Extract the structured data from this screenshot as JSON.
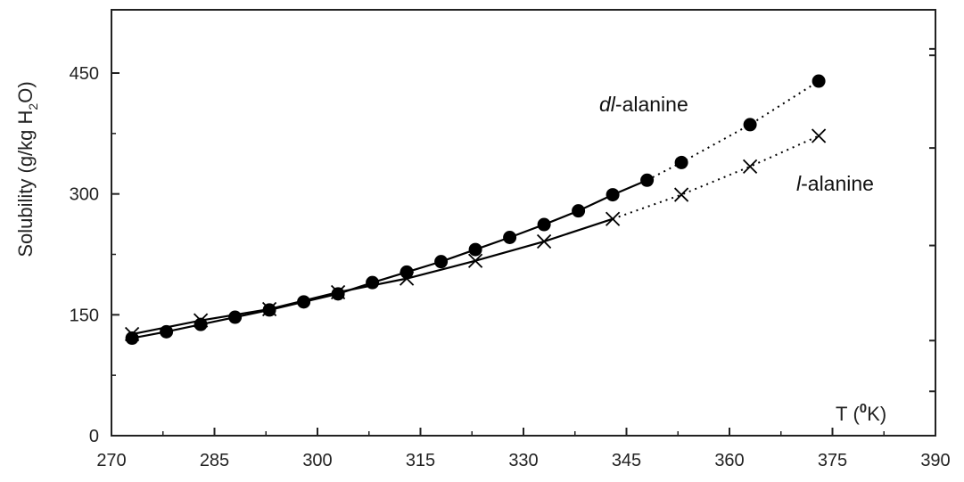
{
  "chart_data": {
    "type": "line",
    "title": "",
    "xlabel": "T",
    "xlabel_unit_sup": "0",
    "xlabel_unit": "K",
    "ylabel_prefix": "Solubility (g/kg H",
    "ylabel_sub": "2",
    "ylabel_suffix": "O)",
    "xlim": [
      270,
      390
    ],
    "ylim": [
      0,
      525
    ],
    "xticks": [
      270,
      285,
      300,
      315,
      330,
      345,
      360,
      375,
      390
    ],
    "yticks": [
      0,
      150,
      300,
      450
    ],
    "grid": false,
    "legend": "none",
    "series": [
      {
        "name": "dl-alanine",
        "label_italic": "dl",
        "label_rest": "-alanine",
        "marker": "filled-circle",
        "color": "#000000",
        "x": [
          273,
          278,
          283,
          288,
          293,
          298,
          303,
          308,
          313,
          318,
          323,
          328,
          333,
          338,
          343,
          348,
          353,
          363,
          373
        ],
        "y": [
          121,
          129,
          138,
          147,
          156,
          166,
          176,
          190,
          203,
          216,
          231,
          246,
          262,
          279,
          299,
          317,
          339,
          386,
          440
        ],
        "solid_until_index": 15
      },
      {
        "name": "l-alanine",
        "label_italic": "l",
        "label_rest": "-alanine",
        "marker": "x-cross",
        "color": "#000000",
        "x": [
          273,
          283,
          293,
          303,
          313,
          323,
          333,
          343,
          353,
          363,
          373
        ],
        "y": [
          126,
          143,
          157,
          178,
          195,
          217,
          241,
          269,
          299,
          334,
          372
        ],
        "solid_until_index": 7
      }
    ]
  }
}
